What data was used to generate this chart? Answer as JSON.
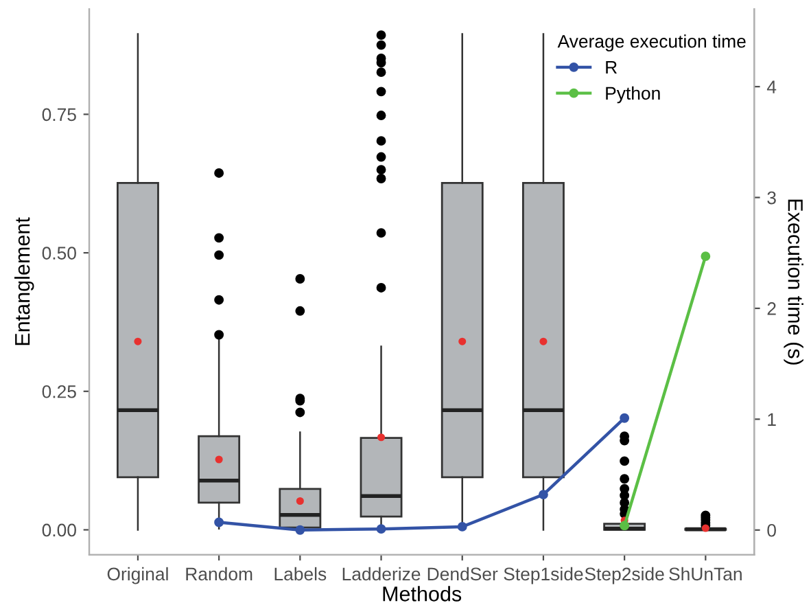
{
  "chart_data": {
    "type": "box",
    "xlabel": "Methods",
    "ylabel": "Entanglement",
    "y2label": "Execution time (s)",
    "legend_title": "Average execution time",
    "legend": "top right",
    "grid": false,
    "categories": [
      "Original",
      "Random",
      "Labels",
      "Ladderize",
      "DendSer",
      "Step1side",
      "Step2side",
      "ShUnTan"
    ],
    "color": "#b3b6b9",
    "boxes": [
      {
        "low": 0.0,
        "q1": 0.095,
        "median": 0.216,
        "q3": 0.626,
        "high": 0.895,
        "mean": 0.34
      },
      {
        "low": 0.002,
        "q1": 0.049,
        "median": 0.089,
        "q3": 0.169,
        "high": 0.345,
        "mean": 0.127,
        "outliers": [
          0.352,
          0.415,
          0.496,
          0.527,
          0.644
        ]
      },
      {
        "low": 0.0,
        "q1": 0.004,
        "median": 0.027,
        "q3": 0.074,
        "high": 0.176,
        "mean": 0.052,
        "outliers": [
          0.212,
          0.233,
          0.237,
          0.395,
          0.453
        ]
      },
      {
        "low": 0.002,
        "q1": 0.024,
        "median": 0.061,
        "q3": 0.166,
        "high": 0.331,
        "mean": 0.167,
        "outliers": [
          0.437,
          0.536,
          0.634,
          0.65,
          0.673,
          0.702,
          0.748,
          0.791,
          0.826,
          0.843,
          0.851,
          0.875,
          0.893
        ]
      },
      {
        "low": 0.0,
        "q1": 0.095,
        "median": 0.216,
        "q3": 0.626,
        "high": 0.895,
        "mean": 0.34
      },
      {
        "low": 0.0,
        "q1": 0.095,
        "median": 0.216,
        "q3": 0.626,
        "high": 0.895,
        "mean": 0.34
      },
      {
        "low": 0.0,
        "q1": 0.0,
        "median": 0.002,
        "q3": 0.011,
        "high": 0.025,
        "mean": 0.017,
        "outliers": [
          0.029,
          0.037,
          0.049,
          0.062,
          0.074,
          0.092,
          0.124,
          0.161,
          0.169
        ]
      },
      {
        "low": 0.0,
        "q1": 0.0,
        "median": 0.001,
        "q3": 0.002,
        "high": 0.004,
        "mean": 0.003,
        "outliers": [
          0.008,
          0.013,
          0.018,
          0.022,
          0.026
        ]
      }
    ],
    "series": [
      {
        "name": "R",
        "type": "line",
        "axis": "y2",
        "color": "#3353a6",
        "marker": "circle",
        "values": [
          null,
          0.07,
          0.0,
          0.01,
          0.03,
          0.32,
          1.01,
          null
        ]
      },
      {
        "name": "Python",
        "type": "line",
        "axis": "y2",
        "color": "#5bbf45",
        "marker": "circle",
        "values": [
          null,
          null,
          null,
          null,
          null,
          null,
          0.04,
          2.47
        ]
      }
    ],
    "ylim": [
      -0.045,
      0.94
    ],
    "yticks": [
      {
        "value": 0,
        "label": "0.00"
      },
      {
        "value": 0.25,
        "label": "0.25"
      },
      {
        "value": 0.5,
        "label": "0.50"
      },
      {
        "value": 0.75,
        "label": "0.75"
      }
    ],
    "y2lim": [
      -0.223,
      4.7
    ],
    "y2ticks": [
      0,
      1,
      2,
      3,
      4
    ]
  }
}
